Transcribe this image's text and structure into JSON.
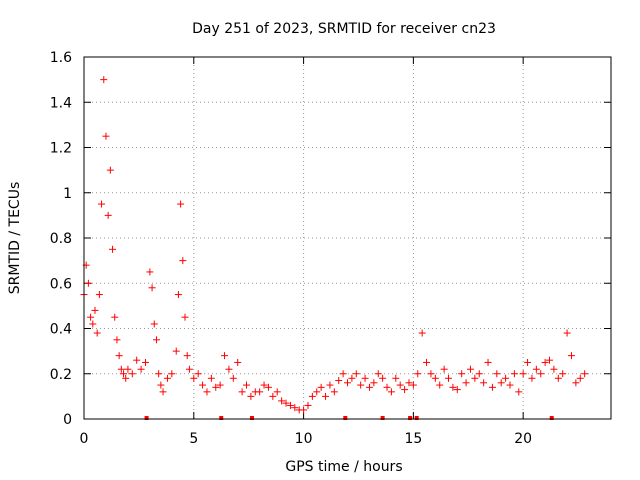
{
  "chart_data": {
    "type": "scatter",
    "title": "Day 251 of 2023, SRMTID for receiver cn23",
    "xlabel": "GPS time / hours",
    "ylabel": "SRMTID / TECUs",
    "xlim": [
      0,
      24
    ],
    "ylim": [
      0,
      1.6
    ],
    "xticks": [
      0,
      5,
      10,
      15,
      20
    ],
    "yticks": [
      0,
      0.2,
      0.4,
      0.6,
      0.8,
      1,
      1.2,
      1.4,
      1.6
    ],
    "xtick_labels": [
      "0",
      "5",
      "10",
      "15",
      "20"
    ],
    "ytick_labels": [
      "0",
      "0.2",
      "0.4",
      "0.6",
      "0.8",
      "1",
      "1.2",
      "1.4",
      "1.6"
    ],
    "grid": true,
    "marker": "plus",
    "color": "#ff0000",
    "series": [
      {
        "name": "SRMTID",
        "x": [
          0.0,
          0.1,
          0.2,
          0.3,
          0.4,
          0.5,
          0.6,
          0.7,
          0.8,
          0.9,
          1.0,
          1.1,
          1.2,
          1.3,
          1.4,
          1.5,
          1.6,
          1.7,
          1.8,
          1.9,
          2.0,
          2.2,
          2.4,
          2.6,
          2.8,
          3.0,
          3.1,
          3.2,
          3.3,
          3.4,
          3.5,
          3.6,
          3.8,
          4.0,
          4.2,
          4.3,
          4.4,
          4.5,
          4.6,
          4.7,
          4.8,
          5.0,
          5.2,
          5.4,
          5.6,
          5.8,
          6.0,
          6.2,
          6.4,
          6.6,
          6.8,
          7.0,
          7.2,
          7.4,
          7.6,
          7.8,
          8.0,
          8.2,
          8.4,
          8.6,
          8.8,
          9.0,
          9.2,
          9.4,
          9.6,
          9.8,
          10.0,
          10.2,
          10.4,
          10.6,
          10.8,
          11.0,
          11.2,
          11.4,
          11.6,
          11.8,
          12.0,
          12.2,
          12.4,
          12.6,
          12.8,
          13.0,
          13.2,
          13.4,
          13.6,
          13.8,
          14.0,
          14.2,
          14.4,
          14.6,
          14.8,
          15.0,
          15.2,
          15.4,
          15.6,
          15.8,
          16.0,
          16.2,
          16.4,
          16.6,
          16.8,
          17.0,
          17.2,
          17.4,
          17.6,
          17.8,
          18.0,
          18.2,
          18.4,
          18.6,
          18.8,
          19.0,
          19.2,
          19.4,
          19.6,
          19.8,
          20.0,
          20.2,
          20.4,
          20.6,
          20.8,
          21.0,
          21.2,
          21.4,
          21.6,
          21.8,
          22.0,
          22.2,
          22.4,
          22.6,
          22.8
        ],
        "y": [
          0.55,
          0.68,
          0.6,
          0.45,
          0.42,
          0.48,
          0.38,
          0.55,
          0.95,
          1.5,
          1.25,
          0.9,
          1.1,
          0.75,
          0.45,
          0.35,
          0.28,
          0.22,
          0.2,
          0.18,
          0.22,
          0.2,
          0.26,
          0.22,
          0.25,
          0.65,
          0.58,
          0.42,
          0.35,
          0.2,
          0.15,
          0.12,
          0.18,
          0.2,
          0.3,
          0.55,
          0.95,
          0.7,
          0.45,
          0.28,
          0.22,
          0.18,
          0.2,
          0.15,
          0.12,
          0.18,
          0.14,
          0.15,
          0.28,
          0.22,
          0.18,
          0.25,
          0.12,
          0.15,
          0.1,
          0.12,
          0.12,
          0.15,
          0.14,
          0.1,
          0.12,
          0.08,
          0.07,
          0.06,
          0.05,
          0.04,
          0.04,
          0.06,
          0.1,
          0.12,
          0.14,
          0.1,
          0.15,
          0.12,
          0.17,
          0.2,
          0.16,
          0.18,
          0.2,
          0.15,
          0.18,
          0.14,
          0.16,
          0.2,
          0.18,
          0.14,
          0.12,
          0.18,
          0.15,
          0.13,
          0.16,
          0.15,
          0.2,
          0.38,
          0.25,
          0.2,
          0.18,
          0.15,
          0.22,
          0.18,
          0.14,
          0.13,
          0.2,
          0.16,
          0.22,
          0.18,
          0.2,
          0.16,
          0.25,
          0.14,
          0.2,
          0.16,
          0.18,
          0.15,
          0.2,
          0.12,
          0.2,
          0.25,
          0.18,
          0.22,
          0.2,
          0.25,
          0.26,
          0.22,
          0.18,
          0.2,
          0.38,
          0.28,
          0.16,
          0.18,
          0.2
        ]
      }
    ],
    "baseline_markers_x": [
      2.85,
      6.25,
      7.65,
      11.9,
      13.6,
      14.85,
      15.15,
      21.3
    ]
  }
}
